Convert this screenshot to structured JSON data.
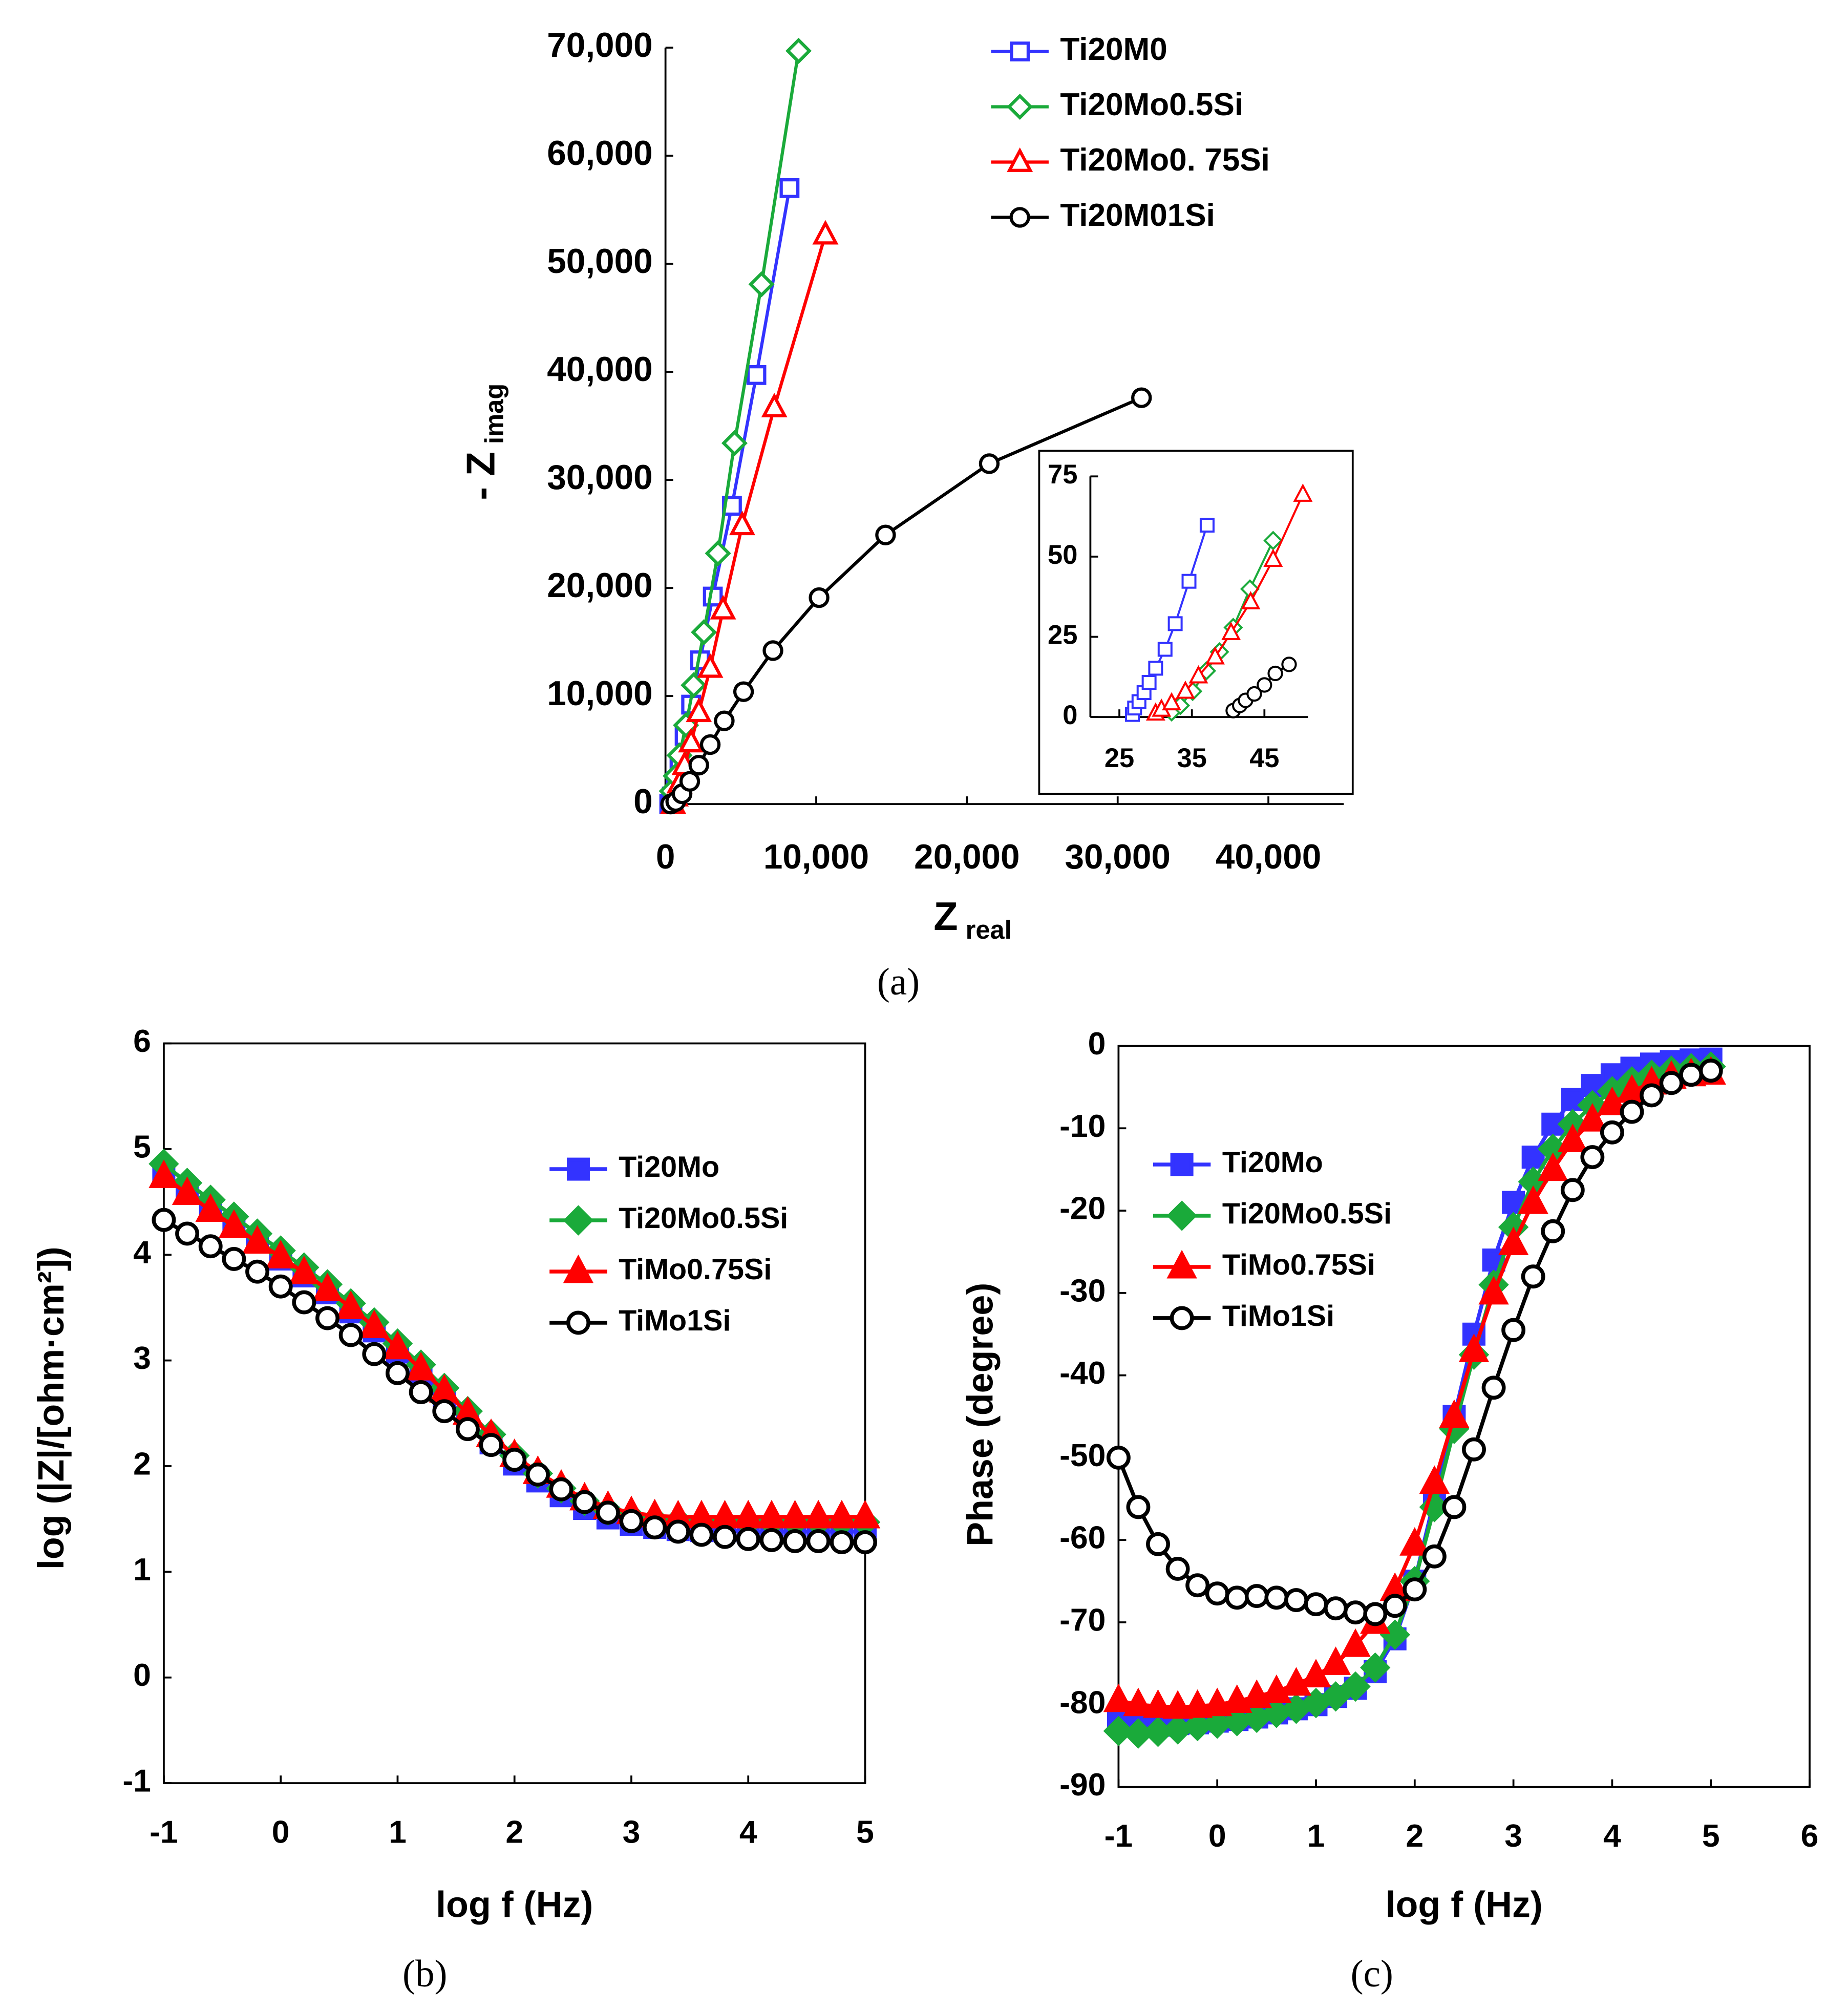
{
  "chart_data": [
    {
      "type": "line",
      "caption": "(a)",
      "x_label": "Z",
      "x_label_sub": "real",
      "y_label": "- Z",
      "y_label_sub": "imag",
      "xlim": [
        0,
        45000
      ],
      "ylim": [
        0,
        70000
      ],
      "xticks": [
        0,
        {
          "value": 10000,
          "label": "10,000"
        },
        {
          "value": 20000,
          "label": "20,000"
        },
        {
          "value": 30000,
          "label": "30,000"
        },
        {
          "value": 40000,
          "label": "40,000"
        }
      ],
      "yticks": [
        0,
        {
          "value": 10000,
          "label": "10,000"
        },
        {
          "value": 20000,
          "label": "20,000"
        },
        {
          "value": 30000,
          "label": "30,000"
        },
        {
          "value": 40000,
          "label": "40,000"
        },
        {
          "value": 50000,
          "label": "50,000"
        },
        {
          "value": 60000,
          "label": "60,000"
        },
        {
          "value": 70000,
          "label": "70,000"
        }
      ],
      "legend": "upper right",
      "markers_filled": false,
      "box": false,
      "series": [
        {
          "name": "Ti20M0",
          "color": "#3333ff",
          "marker": "square",
          "x": [
            250,
            420,
            680,
            930,
            1270,
            1700,
            2290,
            3140,
            4410,
            6030,
            8230
          ],
          "values": [
            0,
            700,
            2100,
            3900,
            6300,
            9200,
            13300,
            19200,
            27600,
            39700,
            57000
          ]
        },
        {
          "name": "Ti20Mo0.5Si",
          "color": "#1aaa3a",
          "marker": "diamond",
          "x": [
            420,
            680,
            930,
            1360,
            1870,
            2550,
            3480,
            4580,
            6370,
            8830
          ],
          "values": [
            1200,
            2600,
            4500,
            7300,
            11000,
            15900,
            23200,
            33400,
            48100,
            69700
          ]
        },
        {
          "name": "Ti20Mo0. 75Si",
          "color": "#ff0000",
          "marker": "triangle",
          "x": [
            510,
            680,
            930,
            1270,
            1700,
            2210,
            2970,
            3820,
            5090,
            7220,
            10610
          ],
          "values": [
            0,
            700,
            1900,
            3600,
            5700,
            8500,
            12600,
            18000,
            25800,
            36700,
            52700
          ]
        },
        {
          "name": "Ti20M01Si",
          "color": "#000000",
          "marker": "circle",
          "x": [
            340,
            680,
            1100,
            1610,
            2210,
            2970,
            3900,
            5180,
            7130,
            10190,
            14600,
            21480,
            31580
          ],
          "values": [
            0,
            240,
            950,
            2100,
            3600,
            5500,
            7700,
            10400,
            14200,
            19100,
            24900,
            31500,
            37600
          ]
        }
      ]
    },
    {
      "type": "line",
      "xlim": [
        21,
        51
      ],
      "ylim": [
        0,
        75
      ],
      "xticks": [
        25,
        35,
        45
      ],
      "yticks": [
        0,
        25,
        50,
        75
      ],
      "markers_filled": false,
      "box": false,
      "series": [
        {
          "color": "#3333ff",
          "marker": "square",
          "x": [
            26.8,
            27.1,
            27.7,
            28.4,
            29.1,
            30.0,
            31.3,
            32.7,
            34.6,
            37.1
          ],
          "values": [
            0.8,
            2.8,
            4.8,
            7.6,
            10.8,
            15.2,
            21.1,
            29.1,
            42.3,
            59.8
          ]
        },
        {
          "color": "#1aaa3a",
          "marker": "diamond",
          "x": [
            32.2,
            33.4,
            35.1,
            37.0,
            38.8,
            40.7,
            43.0,
            46.2
          ],
          "values": [
            1.6,
            3.6,
            8.0,
            14.4,
            20.3,
            27.9,
            39.9,
            55
          ]
        },
        {
          "color": "#ff0000",
          "marker": "triangle",
          "x": [
            30.0,
            30.8,
            32.2,
            34.1,
            35.9,
            38.2,
            40.4,
            43.1,
            46.2,
            50.3
          ],
          "values": [
            1.2,
            2.4,
            4.4,
            8.0,
            12.8,
            18.7,
            26.3,
            35.9,
            49.1,
            69.4
          ]
        },
        {
          "color": "#000000",
          "marker": "circle",
          "x": [
            40.7,
            41.6,
            42.4,
            43.6,
            45.0,
            46.5,
            48.4
          ],
          "values": [
            2.0,
            3.6,
            5.2,
            7.2,
            10.0,
            13.6,
            16.4
          ]
        }
      ]
    },
    {
      "type": "line",
      "caption": "(b)",
      "x_label": "log f (Hz)",
      "y_label": "log (|Z|/[ohm·cm²])",
      "xlim": [
        -1,
        5
      ],
      "ylim": [
        -1,
        6
      ],
      "xticks": [
        -1,
        0,
        1,
        2,
        3,
        4,
        5
      ],
      "yticks": [
        -1,
        0,
        1,
        2,
        3,
        4,
        5,
        6
      ],
      "legend": "right",
      "markers_filled": true,
      "box": true,
      "x": [
        -1,
        -0.8,
        -0.6,
        -0.4,
        -0.2,
        0,
        0.2,
        0.4,
        0.6,
        0.8,
        1,
        1.2,
        1.4,
        1.6,
        1.8,
        2,
        2.2,
        2.4,
        2.6,
        2.8,
        3,
        3.2,
        3.4,
        3.6,
        3.8,
        4,
        4.2,
        4.4,
        4.6,
        4.8,
        5
      ],
      "series": [
        {
          "name": "Ti20Mo",
          "color": "#3333ff",
          "marker": "square",
          "values": [
            4.78,
            4.6,
            4.44,
            4.28,
            4.12,
            3.96,
            3.8,
            3.64,
            3.46,
            3.28,
            3.08,
            2.88,
            2.66,
            2.44,
            2.22,
            2.02,
            1.86,
            1.72,
            1.6,
            1.51,
            1.45,
            1.42,
            1.4,
            1.39,
            1.39,
            1.38,
            1.38,
            1.38,
            1.38,
            1.38,
            1.38
          ]
        },
        {
          "name": "Ti20Mo0.5Si",
          "color": "#1aaa3a",
          "marker": "diamond",
          "values": [
            4.86,
            4.68,
            4.52,
            4.36,
            4.2,
            4.04,
            3.88,
            3.72,
            3.54,
            3.36,
            3.16,
            2.96,
            2.74,
            2.52,
            2.3,
            2.1,
            1.93,
            1.79,
            1.67,
            1.58,
            1.52,
            1.49,
            1.48,
            1.47,
            1.47,
            1.47,
            1.47,
            1.47,
            1.47,
            1.47,
            1.47
          ]
        },
        {
          "name": "TiMo0.75Si",
          "color": "#ff0000",
          "marker": "triangle",
          "values": [
            4.74,
            4.58,
            4.42,
            4.27,
            4.12,
            3.98,
            3.83,
            3.67,
            3.5,
            3.32,
            3.12,
            2.92,
            2.71,
            2.5,
            2.29,
            2.1,
            1.94,
            1.81,
            1.69,
            1.61,
            1.56,
            1.53,
            1.52,
            1.52,
            1.52,
            1.52,
            1.52,
            1.52,
            1.52,
            1.52,
            1.52
          ]
        },
        {
          "name": "TiMo1Si",
          "color": "#000000",
          "marker": "circle",
          "values": [
            4.33,
            4.2,
            4.08,
            3.96,
            3.84,
            3.7,
            3.55,
            3.4,
            3.24,
            3.06,
            2.88,
            2.7,
            2.52,
            2.35,
            2.2,
            2.06,
            1.92,
            1.78,
            1.66,
            1.56,
            1.48,
            1.42,
            1.38,
            1.35,
            1.33,
            1.31,
            1.3,
            1.29,
            1.29,
            1.28,
            1.28
          ]
        }
      ]
    },
    {
      "type": "line",
      "caption": "(c)",
      "x_label": "log f (Hz)",
      "y_label": "Phase (degree)",
      "xlim": [
        -1,
        6
      ],
      "ylim": [
        -90,
        0
      ],
      "xticks": [
        -1,
        0,
        1,
        2,
        3,
        4,
        5,
        6
      ],
      "yticks": [
        0,
        -10,
        -20,
        -30,
        -40,
        -50,
        -60,
        -70,
        -80,
        -90
      ],
      "legend": "left",
      "markers_filled": true,
      "box": true,
      "x": [
        -1,
        -0.8,
        -0.6,
        -0.4,
        -0.2,
        0,
        0.2,
        0.4,
        0.6,
        0.8,
        1,
        1.2,
        1.4,
        1.6,
        1.8,
        2,
        2.2,
        2.4,
        2.6,
        2.8,
        3,
        3.2,
        3.4,
        3.6,
        3.8,
        4,
        4.2,
        4.4,
        4.6,
        4.8,
        5
      ],
      "series": [
        {
          "name": "Ti20Mo",
          "color": "#3333ff",
          "marker": "square",
          "values": [
            -82,
            -82.5,
            -82.5,
            -82.3,
            -82.2,
            -82,
            -81.8,
            -81.5,
            -81,
            -80.5,
            -80,
            -79,
            -78,
            -76,
            -72,
            -65,
            -55,
            -45,
            -35,
            -26,
            -19,
            -13.5,
            -9.5,
            -6.5,
            -4.8,
            -3.5,
            -2.7,
            -2.2,
            -1.9,
            -1.7,
            -1.6
          ]
        },
        {
          "name": "Ti20Mo0.5Si",
          "color": "#1aaa3a",
          "marker": "diamond",
          "values": [
            -83.2,
            -83.5,
            -83.3,
            -83,
            -82.6,
            -82.3,
            -82,
            -81.6,
            -81,
            -80.5,
            -79.8,
            -79,
            -77.8,
            -75.5,
            -71.5,
            -65,
            -56,
            -46.5,
            -37.5,
            -29,
            -22,
            -16.5,
            -12.5,
            -9.5,
            -7.2,
            -5.5,
            -4.3,
            -3.5,
            -3,
            -2.7,
            -2.5
          ]
        },
        {
          "name": "TiMo0.75Si",
          "color": "#ff0000",
          "marker": "triangle",
          "values": [
            -79.5,
            -80,
            -80.2,
            -80.3,
            -80.2,
            -80,
            -79.6,
            -79,
            -78.4,
            -77.5,
            -76.5,
            -75,
            -72.8,
            -70,
            -66,
            -60.5,
            -53,
            -45,
            -37,
            -30,
            -24,
            -19,
            -15,
            -11.5,
            -9,
            -7,
            -5.5,
            -4.5,
            -3.8,
            -3.5,
            -3.3
          ]
        },
        {
          "name": "TiMo1Si",
          "color": "#000000",
          "marker": "circle",
          "values": [
            -50,
            -56,
            -60.5,
            -63.5,
            -65.5,
            -66.5,
            -67,
            -66.8,
            -67,
            -67.3,
            -67.8,
            -68.3,
            -68.8,
            -69,
            -68,
            -66,
            -62,
            -56,
            -49,
            -41.5,
            -34.5,
            -28,
            -22.5,
            -17.5,
            -13.5,
            -10.5,
            -8,
            -6,
            -4.5,
            -3.5,
            -3
          ]
        }
      ]
    }
  ]
}
